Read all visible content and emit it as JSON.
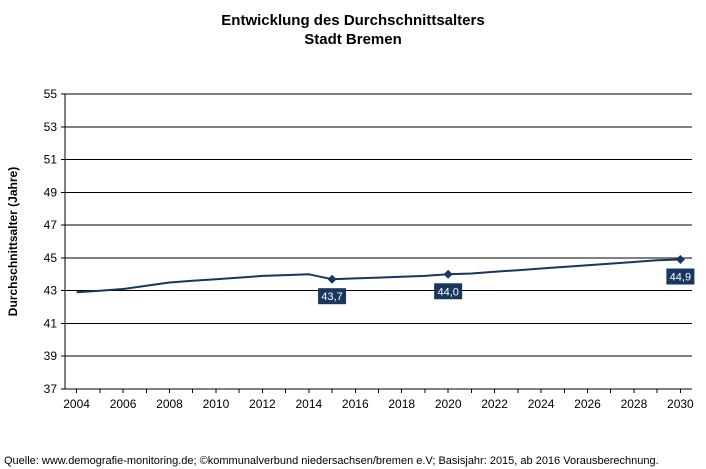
{
  "chart_data": {
    "type": "line",
    "title": "Entwicklung des Durchschnittsalters",
    "subtitle": "Stadt Bremen",
    "ylabel": "Durchschnittsalter  (Jahre)",
    "xlabel": "",
    "xlim": [
      2003.5,
      2030.5
    ],
    "ylim": [
      37,
      55
    ],
    "x_ticks": [
      "2004",
      "2006",
      "2008",
      "2010",
      "2012",
      "2014",
      "2016",
      "2018",
      "2020",
      "2022",
      "2024",
      "2026",
      "2028",
      "2030"
    ],
    "y_ticks": [
      "37",
      "39",
      "41",
      "43",
      "45",
      "47",
      "49",
      "51",
      "53",
      "55"
    ],
    "grid": "horizontal",
    "legend": "none",
    "line_color": "#17375e",
    "series": [
      {
        "x": [
          2004,
          2005,
          2006,
          2007,
          2008,
          2009,
          2010,
          2011,
          2012,
          2013,
          2014,
          2015,
          2016,
          2017,
          2018,
          2019,
          2020,
          2021,
          2022,
          2023,
          2024,
          2025,
          2026,
          2027,
          2028,
          2029,
          2030
        ],
        "y": [
          42.9,
          43.0,
          43.1,
          43.3,
          43.5,
          43.6,
          43.7,
          43.8,
          43.9,
          43.95,
          44.0,
          43.7,
          43.75,
          43.8,
          43.85,
          43.9,
          44.0,
          44.05,
          44.15,
          44.25,
          44.35,
          44.45,
          44.55,
          44.65,
          44.75,
          44.85,
          44.9
        ]
      }
    ],
    "markers": [
      {
        "x": 2015,
        "y": 43.7,
        "label": "43,7"
      },
      {
        "x": 2020,
        "y": 44.0,
        "label": "44,0"
      },
      {
        "x": 2030,
        "y": 44.9,
        "label": "44,9"
      }
    ]
  },
  "source_note": "Quelle:  www.demografie-monitoring.de; ©kommunalverbund niedersachsen/bremen e.V; Basisjahr: 2015, ab 2016 Vorausberechnung."
}
